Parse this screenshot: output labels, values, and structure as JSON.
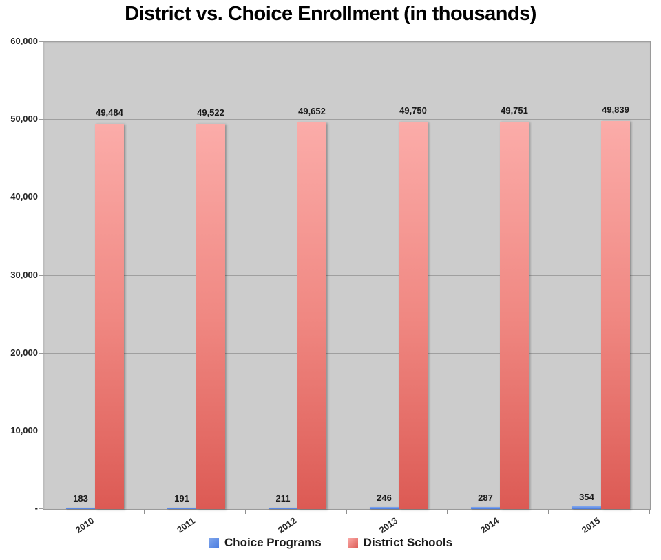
{
  "title": "District vs. Choice Enrollment (in thousands)",
  "chart_data": {
    "type": "bar",
    "title": "District vs. Choice Enrollment (in thousands)",
    "categories": [
      "2010",
      "2011",
      "2012",
      "2013",
      "2014",
      "2015"
    ],
    "series": [
      {
        "name": "Choice Programs",
        "values": [
          183,
          191,
          211,
          246,
          287,
          354
        ],
        "labels": [
          "183",
          "191",
          "211",
          "246",
          "287",
          "354"
        ],
        "color": "#4E82E4",
        "gradient": [
          "#82A7EC",
          "#4A7CE0"
        ]
      },
      {
        "name": "District Schools",
        "values": [
          49484,
          49522,
          49652,
          49750,
          49751,
          49839
        ],
        "labels": [
          "49,484",
          "49,522",
          "49,652",
          "49,750",
          "49,751",
          "49,839"
        ],
        "color": "#E8736D",
        "gradient": [
          "#FBACA9",
          "#F08882",
          "#DC5A54"
        ]
      }
    ],
    "ylim": [
      0,
      60000
    ],
    "ytick_interval": 10000,
    "ytick_labels": [
      "-",
      "10,000",
      "20,000",
      "30,000",
      "40,000",
      "50,000",
      "60,000"
    ],
    "grid": true,
    "legend_position": "bottom",
    "plot_bg": "#cccccc",
    "gridline_color": "#9f9f9f"
  }
}
